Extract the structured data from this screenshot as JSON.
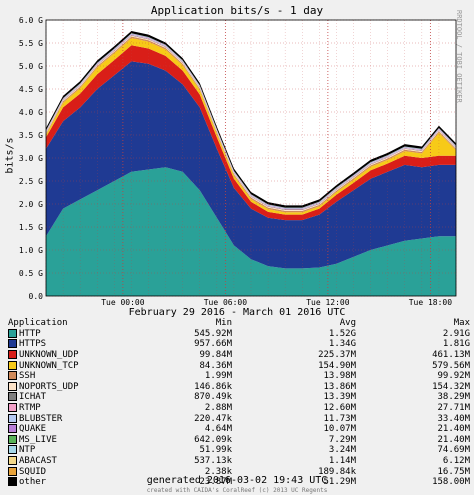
{
  "chart_data": {
    "type": "area",
    "title": "Application bits/s - 1 day",
    "ylabel": "bits/s",
    "xlabel": "February 29 2016 - March 01 2016 UTC",
    "ylim": [
      0,
      6.0
    ],
    "y_ticks": [
      "0.0",
      "0.5 G",
      "1.0 G",
      "1.5 G",
      "2.0 G",
      "2.5 G",
      "3.0 G",
      "3.5 G",
      "4.0 G",
      "4.5 G",
      "5.0 G",
      "5.5 G",
      "6.0 G"
    ],
    "x_ticks": [
      "Tue 00:00",
      "Tue 06:00",
      "Tue 12:00",
      "Tue 18:00"
    ],
    "x_tick_hours": [
      4.5,
      10.5,
      16.5,
      22.5
    ],
    "x_hours": [
      0,
      1,
      2,
      3,
      4,
      5,
      6,
      7,
      8,
      9,
      10,
      11,
      12,
      13,
      14,
      15,
      16,
      17,
      18,
      19,
      20,
      21,
      22,
      23,
      24
    ],
    "series": [
      {
        "name": "HTTP",
        "color": "#2aa198",
        "values": [
          1.3,
          1.9,
          2.1,
          2.3,
          2.5,
          2.7,
          2.75,
          2.8,
          2.7,
          2.3,
          1.7,
          1.1,
          0.8,
          0.65,
          0.6,
          0.6,
          0.62,
          0.7,
          0.85,
          1.0,
          1.1,
          1.2,
          1.25,
          1.3,
          1.3
        ]
      },
      {
        "name": "HTTPS",
        "color": "#1f3a93",
        "values": [
          1.9,
          1.9,
          2.0,
          2.2,
          2.3,
          2.4,
          2.3,
          2.1,
          1.9,
          1.8,
          1.5,
          1.25,
          1.1,
          1.05,
          1.05,
          1.05,
          1.15,
          1.35,
          1.45,
          1.55,
          1.6,
          1.65,
          1.55,
          1.55,
          1.55
        ]
      },
      {
        "name": "UNKNOWN_UDP",
        "color": "#d91e18",
        "values": [
          0.25,
          0.3,
          0.3,
          0.32,
          0.33,
          0.35,
          0.33,
          0.32,
          0.3,
          0.28,
          0.25,
          0.2,
          0.15,
          0.13,
          0.12,
          0.12,
          0.13,
          0.15,
          0.16,
          0.18,
          0.18,
          0.2,
          0.2,
          0.2,
          0.2
        ]
      },
      {
        "name": "UNKNOWN_TCP",
        "color": "#f7ca18",
        "values": [
          0.05,
          0.1,
          0.12,
          0.15,
          0.15,
          0.16,
          0.15,
          0.14,
          0.12,
          0.1,
          0.08,
          0.07,
          0.06,
          0.06,
          0.05,
          0.05,
          0.05,
          0.06,
          0.07,
          0.08,
          0.08,
          0.1,
          0.1,
          0.5,
          0.12
        ]
      },
      {
        "name": "SSH",
        "color": "#d08a5a",
        "values": [
          0.03,
          0.03,
          0.03,
          0.03,
          0.03,
          0.03,
          0.03,
          0.03,
          0.03,
          0.03,
          0.03,
          0.03,
          0.03,
          0.03,
          0.03,
          0.03,
          0.03,
          0.03,
          0.03,
          0.03,
          0.03,
          0.03,
          0.03,
          0.03,
          0.03
        ]
      },
      {
        "name": "NOPORTS_UDP",
        "color": "#fde3c8",
        "values": [
          0.02,
          0.02,
          0.02,
          0.02,
          0.02,
          0.02,
          0.02,
          0.02,
          0.02,
          0.02,
          0.02,
          0.02,
          0.02,
          0.02,
          0.02,
          0.02,
          0.02,
          0.02,
          0.02,
          0.02,
          0.02,
          0.02,
          0.02,
          0.02,
          0.02
        ]
      },
      {
        "name": "ICHAT",
        "color": "#7f7f7f",
        "values": [
          0.01,
          0.01,
          0.01,
          0.01,
          0.01,
          0.01,
          0.01,
          0.01,
          0.01,
          0.01,
          0.01,
          0.01,
          0.01,
          0.01,
          0.01,
          0.01,
          0.01,
          0.01,
          0.01,
          0.01,
          0.01,
          0.01,
          0.01,
          0.01,
          0.01
        ]
      },
      {
        "name": "RTMP",
        "color": "#f2a0c8",
        "values": [
          0.01,
          0.01,
          0.01,
          0.01,
          0.01,
          0.01,
          0.01,
          0.01,
          0.01,
          0.01,
          0.01,
          0.01,
          0.01,
          0.01,
          0.01,
          0.01,
          0.01,
          0.01,
          0.01,
          0.01,
          0.01,
          0.01,
          0.01,
          0.01,
          0.01
        ]
      },
      {
        "name": "BLUBSTER",
        "color": "#b5c9f2",
        "values": [
          0.01,
          0.01,
          0.01,
          0.01,
          0.01,
          0.01,
          0.01,
          0.01,
          0.01,
          0.01,
          0.01,
          0.01,
          0.01,
          0.01,
          0.01,
          0.01,
          0.01,
          0.01,
          0.01,
          0.01,
          0.01,
          0.01,
          0.01,
          0.01,
          0.01
        ]
      },
      {
        "name": "QUAKE",
        "color": "#b97fd8",
        "values": [
          0.01,
          0.01,
          0.01,
          0.01,
          0.01,
          0.01,
          0.01,
          0.01,
          0.01,
          0.01,
          0.01,
          0.01,
          0.01,
          0.01,
          0.01,
          0.01,
          0.01,
          0.01,
          0.01,
          0.01,
          0.01,
          0.01,
          0.01,
          0.01,
          0.01
        ]
      },
      {
        "name": "MS_LIVE",
        "color": "#5ab45a",
        "values": [
          0.005,
          0.005,
          0.005,
          0.005,
          0.005,
          0.005,
          0.005,
          0.005,
          0.005,
          0.005,
          0.005,
          0.005,
          0.005,
          0.005,
          0.005,
          0.005,
          0.005,
          0.005,
          0.005,
          0.005,
          0.005,
          0.005,
          0.005,
          0.005,
          0.005
        ]
      },
      {
        "name": "NTP",
        "color": "#a6d8ea",
        "values": [
          0.005,
          0.005,
          0.005,
          0.005,
          0.005,
          0.005,
          0.005,
          0.005,
          0.005,
          0.005,
          0.005,
          0.005,
          0.005,
          0.005,
          0.005,
          0.005,
          0.005,
          0.005,
          0.005,
          0.005,
          0.005,
          0.005,
          0.005,
          0.005,
          0.005
        ]
      },
      {
        "name": "ABACAST",
        "color": "#f4d98a",
        "values": [
          0.001,
          0.001,
          0.001,
          0.001,
          0.001,
          0.001,
          0.001,
          0.001,
          0.001,
          0.001,
          0.001,
          0.001,
          0.001,
          0.001,
          0.001,
          0.001,
          0.001,
          0.001,
          0.001,
          0.001,
          0.001,
          0.001,
          0.001,
          0.001,
          0.001
        ]
      },
      {
        "name": "SQUID",
        "color": "#e8a33a",
        "values": [
          0.0002,
          0.0002,
          0.0002,
          0.0002,
          0.0002,
          0.0002,
          0.0002,
          0.0002,
          0.0002,
          0.0002,
          0.0002,
          0.0002,
          0.0002,
          0.0002,
          0.0002,
          0.0002,
          0.0002,
          0.0002,
          0.0002,
          0.0002,
          0.0002,
          0.0002,
          0.0002,
          0.0002,
          0.0002
        ]
      },
      {
        "name": "other",
        "color": "#000000",
        "values": [
          0.05,
          0.05,
          0.05,
          0.05,
          0.05,
          0.05,
          0.05,
          0.05,
          0.05,
          0.05,
          0.05,
          0.05,
          0.05,
          0.05,
          0.05,
          0.05,
          0.05,
          0.05,
          0.05,
          0.05,
          0.05,
          0.05,
          0.05,
          0.05,
          0.05
        ]
      }
    ],
    "grid": true,
    "legend": {
      "header": [
        "Application",
        "Min",
        "Avg",
        "Max"
      ],
      "rows": [
        [
          "HTTP",
          "545.92M",
          "1.52G",
          "2.91G"
        ],
        [
          "HTTPS",
          "957.66M",
          "1.34G",
          "1.81G"
        ],
        [
          "UNKNOWN_UDP",
          "99.84M",
          "225.37M",
          "461.13M"
        ],
        [
          "UNKNOWN_TCP",
          "84.36M",
          "154.90M",
          "579.56M"
        ],
        [
          "SSH",
          "1.99M",
          "13.98M",
          "99.92M"
        ],
        [
          "NOPORTS_UDP",
          "146.86k",
          "13.86M",
          "154.32M"
        ],
        [
          "ICHAT",
          "870.49k",
          "13.39M",
          "38.29M"
        ],
        [
          "RTMP",
          "2.88M",
          "12.60M",
          "27.71M"
        ],
        [
          "BLUBSTER",
          "220.47k",
          "11.73M",
          "33.40M"
        ],
        [
          "QUAKE",
          "4.64M",
          "10.07M",
          "21.40M"
        ],
        [
          "MS_LIVE",
          "642.09k",
          "7.29M",
          "21.40M"
        ],
        [
          "NTP",
          "51.99k",
          "3.24M",
          "74.69M"
        ],
        [
          "ABACAST",
          "537.13k",
          "1.14M",
          "6.12M"
        ],
        [
          "SQUID",
          "2.38k",
          "189.84k",
          "16.75M"
        ],
        [
          "other",
          "23.87M",
          "51.29M",
          "158.00M"
        ]
      ]
    }
  },
  "side_text": "RRDTOOL / TOBI OETIKER",
  "generated": "generated 2016-03-02 19:43 UTC",
  "credit": "created with CAIDA's CoralReef (c) 2013 UC Regents"
}
